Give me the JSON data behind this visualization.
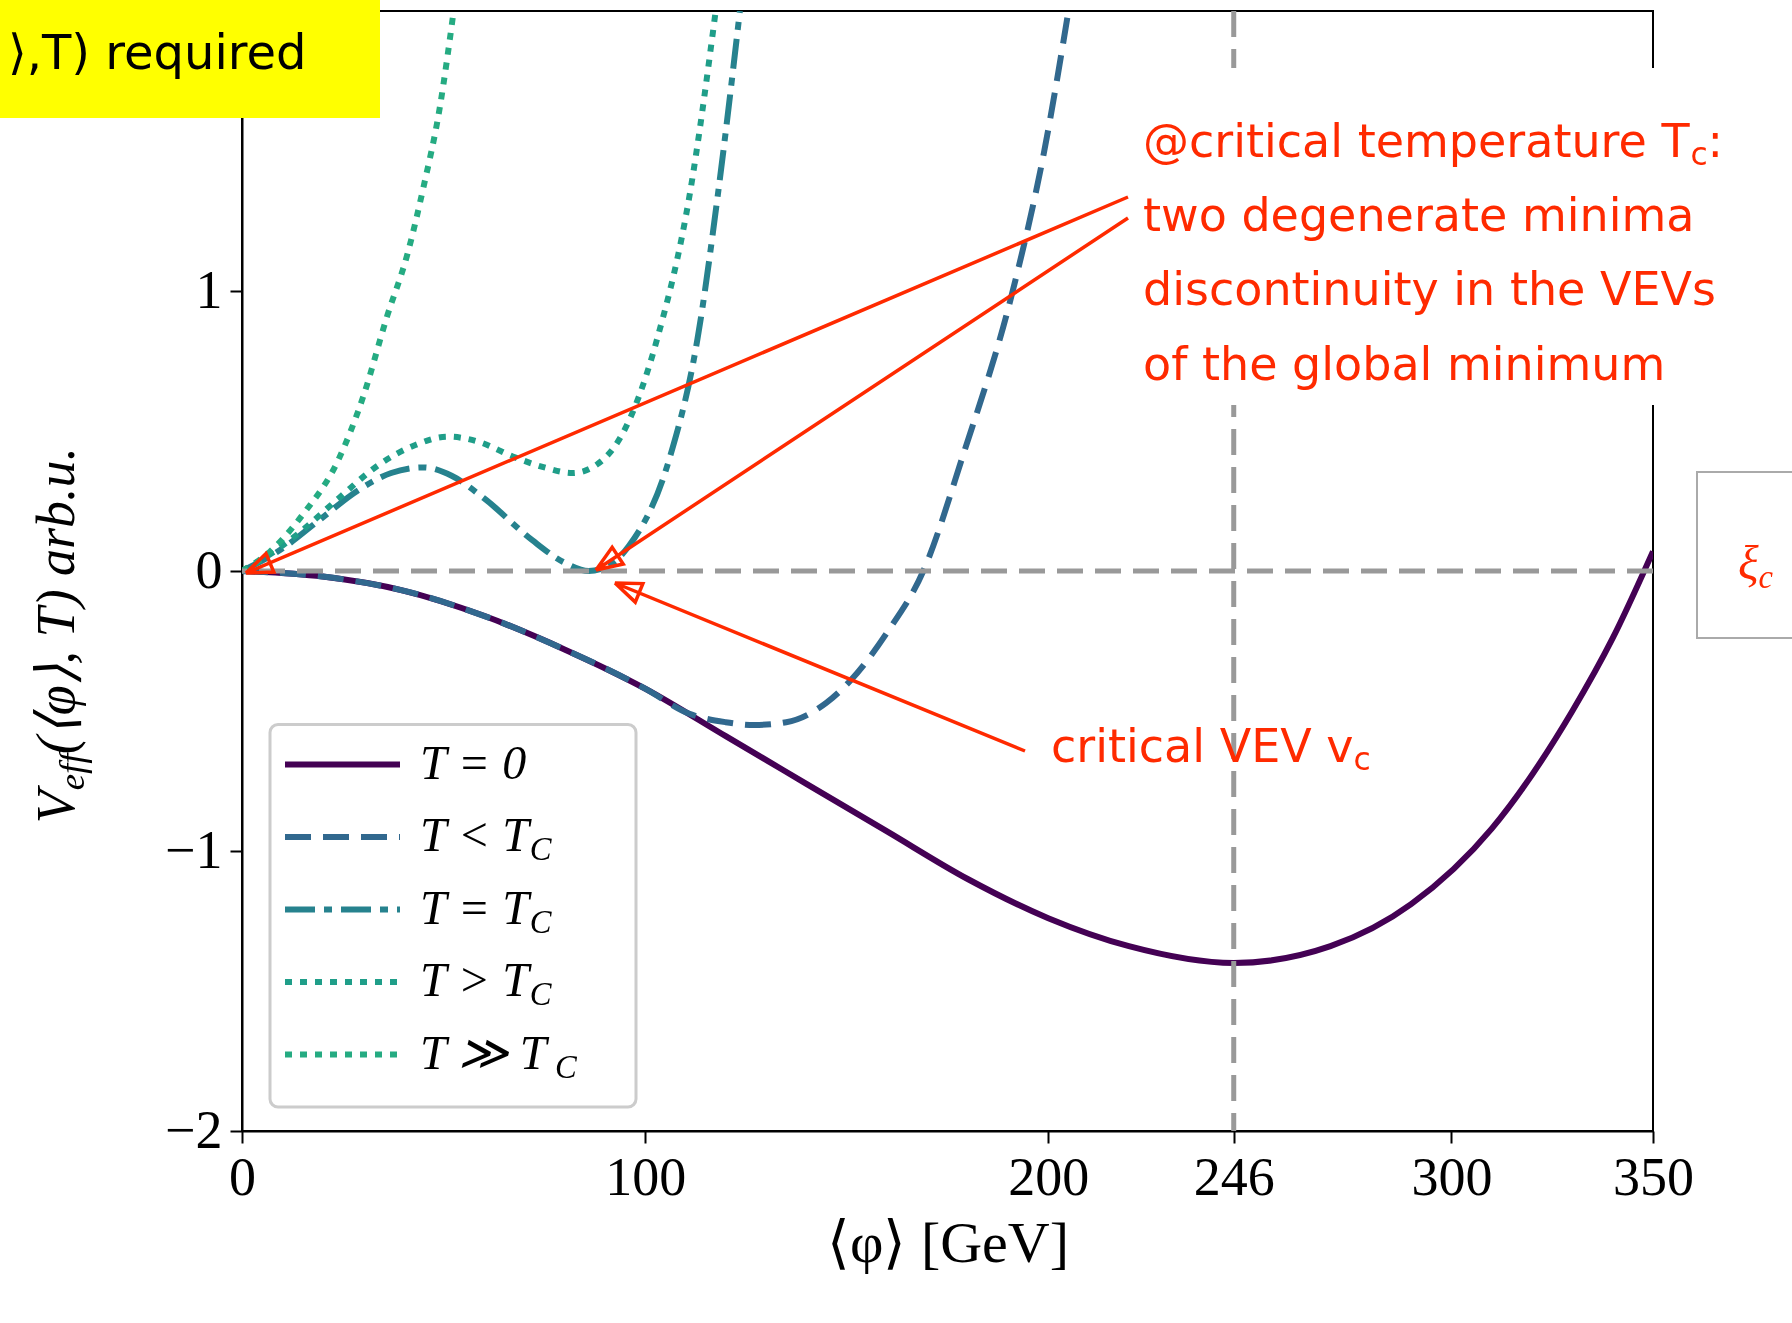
{
  "chart_data": {
    "type": "line",
    "xlabel": "⟨φ⟩ [GeV]",
    "ylabel": "V$_{eff}$(⟨φ⟩, T)    arb.u.",
    "xlim": [
      0,
      350
    ],
    "xticks": [
      0,
      100,
      200,
      246,
      300,
      350
    ],
    "ylim": [
      -2,
      2
    ],
    "yticks": [
      -2,
      -1,
      0,
      1
    ],
    "grid": false,
    "legend": "bottom left",
    "marker": "none",
    "series": [
      {
        "name": "T = 0",
        "color": "#440154",
        "line_style": "solid",
        "x": [
          0,
          20,
          40,
          60,
          80,
          100,
          120,
          140,
          160,
          180,
          200,
          220,
          246,
          270,
          290,
          310,
          330,
          340,
          350
        ],
        "values": [
          0,
          -0.02,
          -0.07,
          -0.16,
          -0.28,
          -0.42,
          -0.59,
          -0.76,
          -0.93,
          -1.1,
          -1.24,
          -1.34,
          -1.4,
          -1.34,
          -1.19,
          -0.92,
          -0.5,
          -0.24,
          0.07
        ]
      },
      {
        "name": "T < T$_{C}$",
        "color": "#31688e",
        "line_style": "dashed",
        "x": [
          0,
          20,
          40,
          60,
          80,
          100,
          111,
          120,
          127,
          135,
          145,
          151,
          160,
          169,
          179,
          191,
          199,
          205
        ],
        "values": [
          0,
          -0.02,
          -0.07,
          -0.16,
          -0.28,
          -0.42,
          -0.51,
          -0.54,
          -0.55,
          -0.54,
          -0.47,
          -0.39,
          -0.22,
          0,
          0.42,
          0.99,
          1.5,
          2.0
        ]
      },
      {
        "name": "T = T$_{C}$",
        "color": "#26828e",
        "line_style": "dashdot",
        "x": [
          0,
          10,
          19,
          29,
          37,
          45,
          52,
          60,
          72,
          80,
          86,
          91,
          96,
          106,
          113,
          118,
          123.5
        ],
        "values": [
          0,
          0.08,
          0.18,
          0.29,
          0.35,
          0.37,
          0.34,
          0.26,
          0.11,
          0.03,
          0,
          0.02,
          0.09,
          0.4,
          0.83,
          1.34,
          2.0
        ]
      },
      {
        "name": "T > T$_{C}$",
        "color": "#1f9e89",
        "line_style": "dotted",
        "x": [
          0,
          7,
          14.5,
          24,
          34,
          43,
          51,
          59,
          67,
          75,
          82,
          88,
          94,
          103,
          111,
          117.5
        ],
        "values": [
          0,
          0.06,
          0.14,
          0.26,
          0.38,
          0.45,
          0.48,
          0.46,
          0.41,
          0.37,
          0.35,
          0.38,
          0.48,
          0.83,
          1.34,
          2.0
        ]
      },
      {
        "name": "T ≫ T$_{C}$",
        "color": "#25ab82",
        "line_style": "dotted",
        "x": [
          0,
          7,
          15,
          24,
          30,
          36,
          41,
          45,
          49,
          52.5
        ],
        "values": [
          0,
          0.07,
          0.2,
          0.4,
          0.62,
          0.91,
          1.13,
          1.37,
          1.65,
          2.0
        ]
      }
    ],
    "ref_lines": [
      {
        "axis": "y",
        "value": 0,
        "color": "#999999",
        "line_style": "dashed"
      },
      {
        "axis": "x",
        "value": 246,
        "color": "#999999",
        "line_style": "dashed"
      }
    ],
    "annotations": [
      "@critical temperature T$_{c}$:",
      "two degenerate minima",
      "discontinuity in the VEVs",
      "of the global minimum",
      "critical VEV v$_{c}$",
      "⟩,T) required",
      "ξ$_{c}$"
    ]
  }
}
